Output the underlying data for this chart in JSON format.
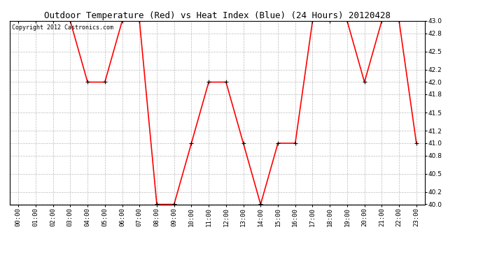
{
  "title": "Outdoor Temperature (Red) vs Heat Index (Blue) (24 Hours) 20120428",
  "copyright_text": "Copyright 2012 Castronics.com",
  "x_labels": [
    "00:00",
    "01:00",
    "02:00",
    "03:00",
    "04:00",
    "05:00",
    "06:00",
    "07:00",
    "08:00",
    "09:00",
    "10:00",
    "11:00",
    "12:00",
    "13:00",
    "14:00",
    "15:00",
    "16:00",
    "17:00",
    "18:00",
    "19:00",
    "20:00",
    "21:00",
    "22:00",
    "23:00"
  ],
  "temp_values": [
    43.0,
    43.0,
    43.0,
    43.0,
    42.0,
    42.0,
    43.0,
    43.0,
    40.0,
    40.0,
    41.0,
    42.0,
    42.0,
    41.0,
    40.0,
    41.0,
    41.0,
    43.0,
    43.0,
    43.0,
    42.0,
    43.0,
    43.0,
    41.0
  ],
  "line_color": "#ff0000",
  "marker_color": "#000000",
  "background_color": "#ffffff",
  "grid_color": "#bbbbbb",
  "ylim": [
    40.0,
    43.0
  ],
  "yticks": [
    40.0,
    40.2,
    40.5,
    40.8,
    41.0,
    41.2,
    41.5,
    41.8,
    42.0,
    42.2,
    42.5,
    42.8,
    43.0
  ],
  "title_fontsize": 9,
  "copyright_fontsize": 6,
  "tick_fontsize": 6.5,
  "line_width": 1.2,
  "marker_size": 5
}
